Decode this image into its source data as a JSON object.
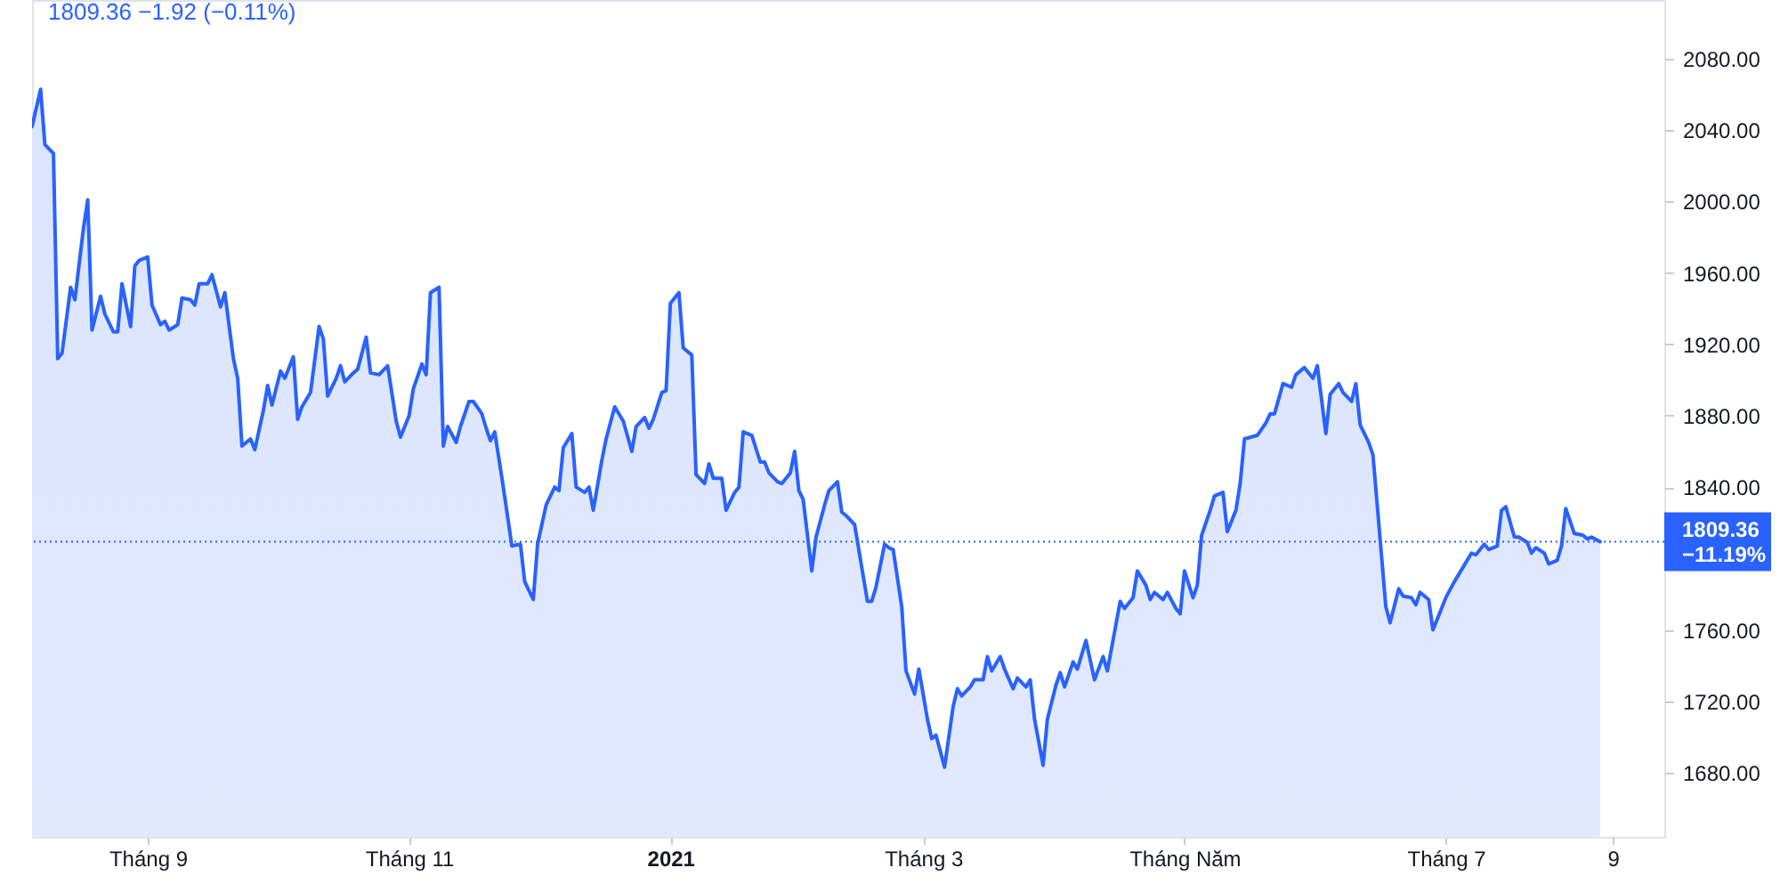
{
  "chart_data": {
    "type": "area",
    "title": "1809.36 −1.92 (−0.11%)",
    "x": [
      "2020-08-05",
      "2020-08-07",
      "2020-08-08",
      "2020-08-10",
      "2020-08-11",
      "2020-08-12",
      "2020-08-14",
      "2020-08-15",
      "2020-08-17",
      "2020-08-18",
      "2020-08-19",
      "2020-08-21",
      "2020-08-22",
      "2020-08-24",
      "2020-08-25",
      "2020-08-26",
      "2020-08-28",
      "2020-08-29",
      "2020-08-30",
      "2020-09-01",
      "2020-09-02",
      "2020-09-04",
      "2020-09-05",
      "2020-09-06",
      "2020-09-08",
      "2020-09-09",
      "2020-09-11",
      "2020-09-12",
      "2020-09-13",
      "2020-09-15",
      "2020-09-16",
      "2020-09-18",
      "2020-09-19",
      "2020-09-21",
      "2020-09-22",
      "2020-09-23",
      "2020-09-25",
      "2020-09-26",
      "2020-09-28",
      "2020-09-29",
      "2020-09-30",
      "2020-10-02",
      "2020-10-03",
      "2020-10-05",
      "2020-10-06",
      "2020-10-07",
      "2020-10-09",
      "2020-10-11",
      "2020-10-12",
      "2020-10-13",
      "2020-10-15",
      "2020-10-16",
      "2020-10-17",
      "2020-10-19",
      "2020-10-20",
      "2020-10-22",
      "2020-10-23",
      "2020-10-25",
      "2020-10-27",
      "2020-10-29",
      "2020-10-30",
      "2020-11-01",
      "2020-11-02",
      "2020-11-04",
      "2020-11-05",
      "2020-11-06",
      "2020-11-08",
      "2020-11-09",
      "2020-11-10",
      "2020-11-12",
      "2020-11-13",
      "2020-11-15",
      "2020-11-16",
      "2020-11-18",
      "2020-11-19",
      "2020-11-20",
      "2020-11-21",
      "2020-11-23",
      "2020-11-25",
      "2020-11-27",
      "2020-11-28",
      "2020-11-30",
      "2020-12-01",
      "2020-12-03",
      "2020-12-05",
      "2020-12-06",
      "2020-12-07",
      "2020-12-09",
      "2020-12-10",
      "2020-12-12",
      "2020-12-13",
      "2020-12-14",
      "2020-12-16",
      "2020-12-17",
      "2020-12-19",
      "2020-12-21",
      "2020-12-23",
      "2020-12-24",
      "2020-12-26",
      "2020-12-27",
      "2020-12-28",
      "2020-12-30",
      "2020-12-31",
      "2021-01-01",
      "2021-01-03",
      "2021-01-04",
      "2021-01-06",
      "2021-01-07",
      "2021-01-09",
      "2021-01-10",
      "2021-01-11",
      "2021-01-13",
      "2021-01-14",
      "2021-01-16",
      "2021-01-17",
      "2021-01-18",
      "2021-01-20",
      "2021-01-22",
      "2021-01-23",
      "2021-01-24",
      "2021-01-26",
      "2021-01-27",
      "2021-01-29",
      "2021-01-30",
      "2021-01-31",
      "2021-02-01",
      "2021-02-03",
      "2021-02-04",
      "2021-02-06",
      "2021-02-07",
      "2021-02-09",
      "2021-02-10",
      "2021-02-11",
      "2021-02-13",
      "2021-02-16",
      "2021-02-17",
      "2021-02-18",
      "2021-02-20",
      "2021-02-21",
      "2021-02-22",
      "2021-02-24",
      "2021-02-25",
      "2021-02-27",
      "2021-02-28",
      "2021-03-02",
      "2021-03-03",
      "2021-03-04",
      "2021-03-06",
      "2021-03-08",
      "2021-03-09",
      "2021-03-10",
      "2021-03-12",
      "2021-03-13",
      "2021-03-15",
      "2021-03-16",
      "2021-03-17",
      "2021-03-19",
      "2021-03-20",
      "2021-03-22",
      "2021-03-23",
      "2021-03-25",
      "2021-03-26",
      "2021-03-27",
      "2021-03-29",
      "2021-03-30",
      "2021-04-01",
      "2021-04-02",
      "2021-04-03",
      "2021-04-05",
      "2021-04-06",
      "2021-04-08",
      "2021-04-09",
      "2021-04-10",
      "2021-04-12",
      "2021-04-13",
      "2021-04-15",
      "2021-04-16",
      "2021-04-17",
      "2021-04-19",
      "2021-04-20",
      "2021-04-22",
      "2021-04-23",
      "2021-04-24",
      "2021-04-26",
      "2021-04-27",
      "2021-04-29",
      "2021-04-30",
      "2021-05-01",
      "2021-05-03",
      "2021-05-04",
      "2021-05-05",
      "2021-05-07",
      "2021-05-08",
      "2021-05-10",
      "2021-05-11",
      "2021-05-13",
      "2021-05-14",
      "2021-05-15",
      "2021-05-18",
      "2021-05-20",
      "2021-05-21",
      "2021-05-22",
      "2021-05-24",
      "2021-05-26",
      "2021-05-27",
      "2021-05-29",
      "2021-05-31",
      "2021-06-01",
      "2021-06-03",
      "2021-06-04",
      "2021-06-06",
      "2021-06-07",
      "2021-06-09",
      "2021-06-10",
      "2021-06-11",
      "2021-06-13",
      "2021-06-14",
      "2021-06-17",
      "2021-06-18",
      "2021-06-20",
      "2021-06-21",
      "2021-06-23",
      "2021-06-24",
      "2021-06-25",
      "2021-06-27",
      "2021-06-28",
      "2021-06-30",
      "2021-07-01",
      "2021-07-03",
      "2021-07-04",
      "2021-07-05",
      "2021-07-07",
      "2021-07-08",
      "2021-07-10",
      "2021-07-11",
      "2021-07-13",
      "2021-07-14",
      "2021-07-15",
      "2021-07-17",
      "2021-07-18",
      "2021-07-20",
      "2021-07-21",
      "2021-07-22",
      "2021-07-24",
      "2021-07-25",
      "2021-07-27",
      "2021-07-28",
      "2021-07-29",
      "2021-07-31",
      "2021-08-02",
      "2021-08-03",
      "2021-08-04",
      "2021-08-06"
    ],
    "values": [
      2042,
      2063,
      2032,
      2027,
      1912,
      1915,
      1952,
      1945,
      1985,
      2001,
      1928,
      1947,
      1937,
      1927,
      1927,
      1954,
      1930,
      1964,
      1967,
      1969,
      1942,
      1931,
      1933,
      1928,
      1931,
      1946,
      1945,
      1942,
      1954,
      1954,
      1959,
      1941,
      1949,
      1912,
      1901,
      1863,
      1867,
      1861,
      1883,
      1897,
      1886,
      1905,
      1901,
      1913,
      1878,
      1885,
      1893,
      1930,
      1923,
      1891,
      1901,
      1908,
      1899,
      1904,
      1906,
      1924,
      1904,
      1903,
      1908,
      1877,
      1868,
      1880,
      1895,
      1909,
      1903,
      1949,
      1952,
      1863,
      1874,
      1865,
      1874,
      1888,
      1888,
      1881,
      1873,
      1866,
      1871,
      1840,
      1807,
      1808,
      1787,
      1777,
      1808,
      1830,
      1840,
      1838,
      1862,
      1870,
      1840,
      1837,
      1840,
      1827,
      1855,
      1867,
      1885,
      1877,
      1860,
      1874,
      1879,
      1873,
      1878,
      1893,
      1894,
      1943,
      1949,
      1918,
      1914,
      1847,
      1842,
      1853,
      1845,
      1845,
      1827,
      1837,
      1840,
      1871,
      1869,
      1854,
      1854,
      1848,
      1843,
      1842,
      1848,
      1860,
      1838,
      1833,
      1793,
      1812,
      1830,
      1838,
      1843,
      1826,
      1824,
      1819,
      1776,
      1776,
      1784,
      1808,
      1806,
      1805,
      1773,
      1737,
      1724,
      1738,
      1710,
      1699,
      1701,
      1683,
      1717,
      1727,
      1723,
      1728,
      1732,
      1732,
      1745,
      1737,
      1745,
      1738,
      1727,
      1733,
      1728,
      1732,
      1710,
      1684,
      1710,
      1729,
      1736,
      1728,
      1742,
      1738,
      1754,
      1743,
      1732,
      1745,
      1737,
      1763,
      1776,
      1772,
      1778,
      1793,
      1785,
      1777,
      1781,
      1777,
      1781,
      1772,
      1769,
      1793,
      1778,
      1785,
      1813,
      1827,
      1835,
      1837,
      1815,
      1827,
      1842,
      1867,
      1869,
      1876,
      1881,
      1881,
      1898,
      1896,
      1903,
      1907,
      1901,
      1908,
      1870,
      1892,
      1898,
      1893,
      1888,
      1898,
      1875,
      1865,
      1858,
      1773,
      1764,
      1783,
      1779,
      1778,
      1774,
      1781,
      1777,
      1760,
      1772,
      1778,
      1787,
      1791,
      1795,
      1803,
      1802,
      1808,
      1805,
      1807,
      1827,
      1829,
      1812,
      1812,
      1809,
      1803,
      1806,
      1803,
      1797,
      1799,
      1807,
      1828,
      1814,
      1813,
      1811,
      1812,
      1809.36
    ],
    "color": "#2962ff",
    "xlim": [
      "2020-08-05",
      "2021-08-21"
    ],
    "xticks": [
      {
        "value": "2020-09-01",
        "label": "Tháng 9"
      },
      {
        "value": "2020-11-01",
        "label": "Tháng 11"
      },
      {
        "value": "2021-01-01",
        "label": "2021"
      },
      {
        "value": "2021-03-01",
        "label": "Tháng 3"
      },
      {
        "value": "2021-05-01",
        "label": "Tháng Năm"
      },
      {
        "value": "2021-07-01",
        "label": "Tháng 7"
      },
      {
        "value": "2021-08-09",
        "label": "9"
      }
    ],
    "ylim": [
      1644,
      2113
    ],
    "yticks": [
      {
        "value": 1680,
        "label": "1680.00"
      },
      {
        "value": 1720,
        "label": "1720.00"
      },
      {
        "value": 1760,
        "label": "1760.00"
      },
      {
        "value": 1840,
        "label": "1840.00"
      },
      {
        "value": 1880,
        "label": "1880.00"
      },
      {
        "value": 1920,
        "label": "1920.00"
      },
      {
        "value": 1960,
        "label": "1960.00"
      },
      {
        "value": 2000,
        "label": "2000.00"
      },
      {
        "value": 2040,
        "label": "2040.00"
      },
      {
        "value": 2080,
        "label": "2080.00"
      }
    ],
    "ref_lines": [
      {
        "axis": "y",
        "value": 1809.36,
        "label": "1809.36\n−11.19%",
        "color": "#2962ff",
        "line_style": "dotted"
      }
    ]
  }
}
